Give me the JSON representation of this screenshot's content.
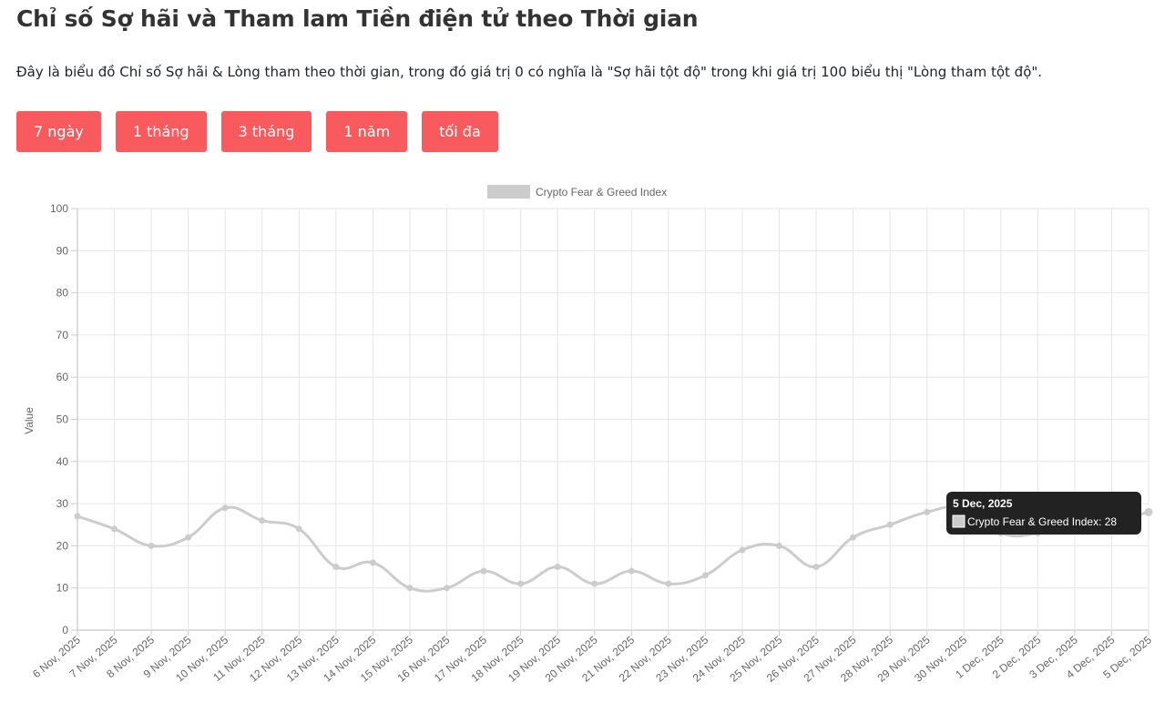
{
  "header": {
    "title": "Chỉ số Sợ hãi và Tham lam Tiền điện tử theo Thời gian",
    "description": "Đây là biểu đồ Chỉ số Sợ hãi & Lòng tham theo thời gian, trong đó giá trị 0 có nghĩa là \"Sợ hãi tột độ\" trong khi giá trị 100 biểu thị \"Lòng tham tột độ\"."
  },
  "range_buttons": [
    "7 ngày",
    "1 tháng",
    "3 tháng",
    "1 năm",
    "tối đa"
  ],
  "colors": {
    "button": "#f85a5e",
    "line": "#cccccc",
    "tooltip_bg": "#222222"
  },
  "chart_data": {
    "type": "line",
    "categories": [
      "6 Nov, 2025",
      "7 Nov, 2025",
      "8 Nov, 2025",
      "9 Nov, 2025",
      "10 Nov, 2025",
      "11 Nov, 2025",
      "12 Nov, 2025",
      "13 Nov, 2025",
      "14 Nov, 2025",
      "15 Nov, 2025",
      "16 Nov, 2025",
      "17 Nov, 2025",
      "18 Nov, 2025",
      "19 Nov, 2025",
      "20 Nov, 2025",
      "21 Nov, 2025",
      "22 Nov, 2025",
      "23 Nov, 2025",
      "24 Nov, 2025",
      "25 Nov, 2025",
      "26 Nov, 2025",
      "27 Nov, 2025",
      "28 Nov, 2025",
      "29 Nov, 2025",
      "30 Nov, 2025",
      "1 Dec, 2025",
      "2 Dec, 2025",
      "3 Dec, 2025",
      "4 Dec, 2025",
      "5 Dec, 2025"
    ],
    "series": [
      {
        "name": "Crypto Fear & Greed Index",
        "values": [
          27,
          24,
          20,
          22,
          29,
          26,
          24,
          15,
          16,
          10,
          10,
          14,
          11,
          15,
          11,
          14,
          11,
          13,
          19,
          20,
          15,
          22,
          25,
          28,
          29,
          23,
          23,
          26,
          26,
          28
        ]
      }
    ],
    "ylabel": "Value",
    "ylim": [
      0,
      100
    ],
    "yticks": [
      0,
      10,
      20,
      30,
      40,
      50,
      60,
      70,
      80,
      90,
      100
    ],
    "grid": true,
    "legend": "top-center",
    "tooltip": {
      "title": "5 Dec, 2025",
      "label": "Crypto Fear & Greed Index: 28"
    }
  }
}
